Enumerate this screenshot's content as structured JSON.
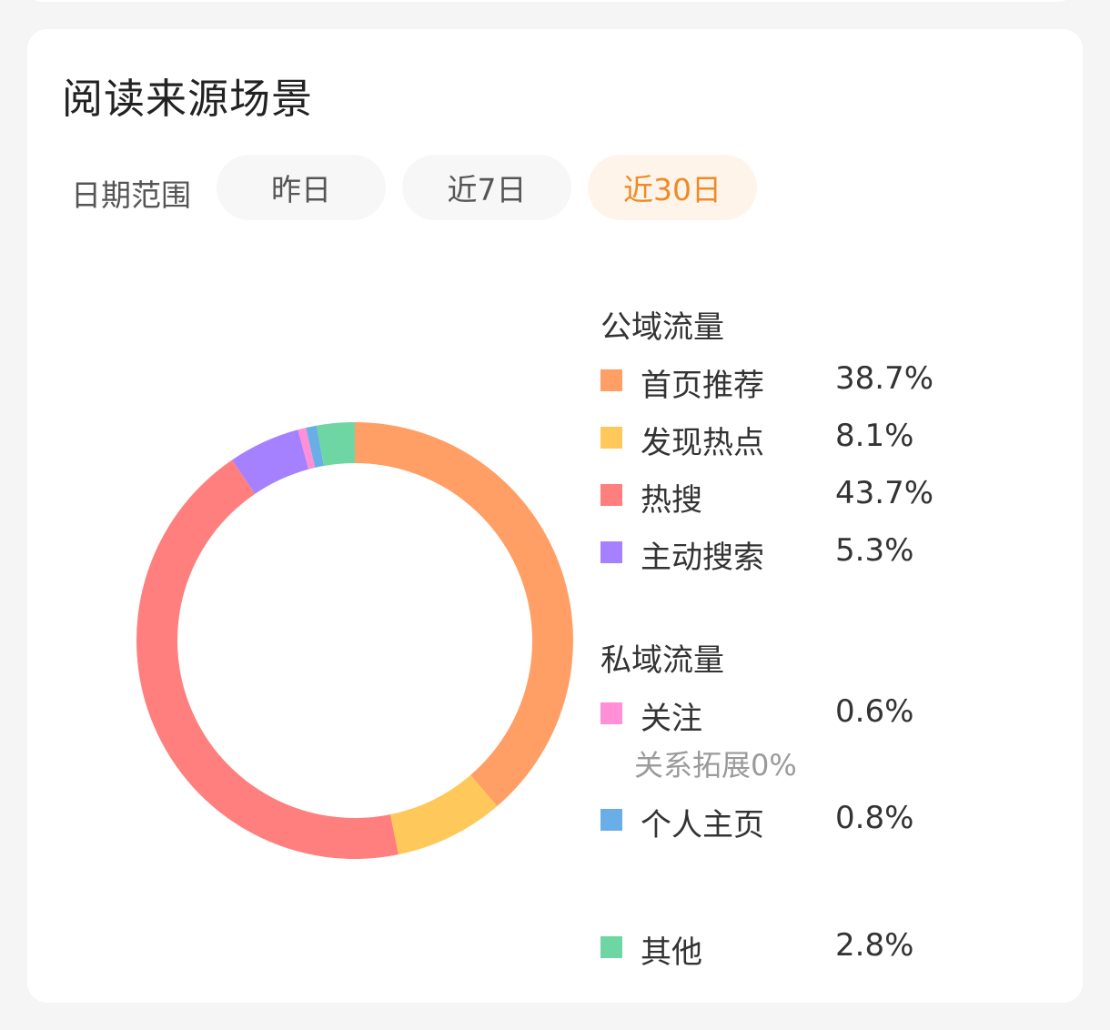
{
  "header": {
    "title": "阅读来源场景"
  },
  "filter": {
    "label": "日期范围",
    "options": [
      {
        "label": "昨日",
        "active": false
      },
      {
        "label": "近7日",
        "active": false
      },
      {
        "label": "近30日",
        "active": true
      }
    ]
  },
  "legend": {
    "public_title": "公域流量",
    "private_title": "私域流量",
    "sub_note": "关系拓展0%"
  },
  "chart_data": {
    "type": "pie",
    "style": "donut",
    "series": [
      {
        "name": "首页推荐",
        "value_label": "38.7%",
        "value": 38.7,
        "color": "#ff9f66",
        "group": "公域流量"
      },
      {
        "name": "发现热点",
        "value_label": "8.1%",
        "value": 8.1,
        "color": "#ffc85a",
        "group": "公域流量"
      },
      {
        "name": "热搜",
        "value_label": "43.7%",
        "value": 43.7,
        "color": "#ff7f7f",
        "group": "公域流量"
      },
      {
        "name": "主动搜索",
        "value_label": "5.3%",
        "value": 5.3,
        "color": "#a580ff",
        "group": "公域流量"
      },
      {
        "name": "关注",
        "value_label": "0.6%",
        "value": 0.6,
        "color": "#ff8fd6",
        "group": "私域流量"
      },
      {
        "name": "个人主页",
        "value_label": "0.8%",
        "value": 0.8,
        "color": "#6aaee8",
        "group": "私域流量"
      },
      {
        "name": "其他",
        "value_label": "2.8%",
        "value": 2.8,
        "color": "#6ed6a2",
        "group": "其他"
      }
    ]
  }
}
